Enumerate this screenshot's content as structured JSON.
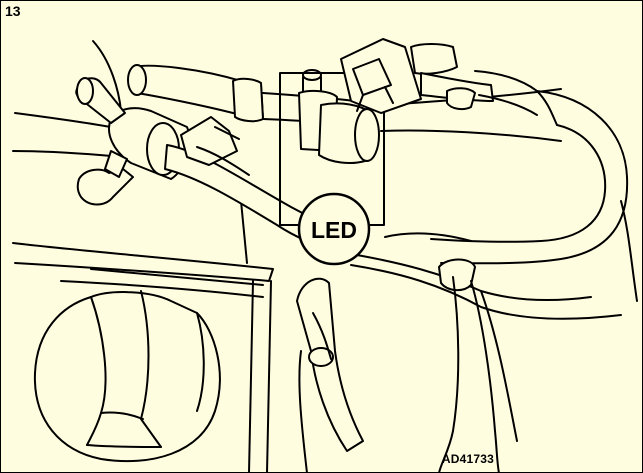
{
  "figure": {
    "number": "13",
    "reference_code": "AD41733",
    "callout_label": "LED",
    "colors": {
      "background": "#fffde0",
      "line": "#000000"
    }
  }
}
